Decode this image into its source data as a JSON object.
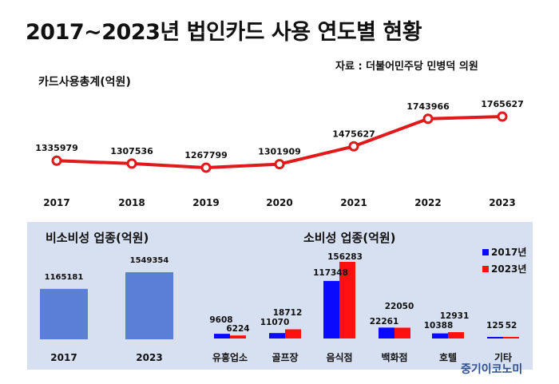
{
  "title": "2017~2023년 법인카드 사용 연도별 현황",
  "source": "자료 : 더불어민주당 민병덕 의원",
  "watermark": "중기이코노미",
  "chart_data": [
    {
      "type": "line",
      "ylabel": "카드사용총계(억원)",
      "x": [
        "2017",
        "2018",
        "2019",
        "2020",
        "2021",
        "2022",
        "2023"
      ],
      "series": [
        {
          "values": [
            1335979,
            1307536,
            1267799,
            1301909,
            1475627,
            1743966,
            1765627
          ]
        }
      ],
      "color": "#e0191b",
      "grid": false
    },
    {
      "type": "bar",
      "title": "비소비성 업종(억원)",
      "categories": [
        "2017",
        "2023"
      ],
      "values": [
        1165181,
        1549354
      ],
      "color": "#5b7fd6"
    },
    {
      "type": "bar",
      "title": "소비성 업종(억원)",
      "categories": [
        "유흥업소",
        "골프장",
        "음식점",
        "백화점",
        "호텔",
        "기타"
      ],
      "series": [
        {
          "name": "2017년",
          "values": [
            9608,
            11070,
            117348,
            22261,
            10388,
            125
          ],
          "color": "#0a0aff"
        },
        {
          "name": "2023년",
          "values": [
            6224,
            18712,
            156283,
            22050,
            12931,
            52
          ],
          "color": "#ff1010"
        }
      ],
      "legend": "top-right"
    }
  ]
}
